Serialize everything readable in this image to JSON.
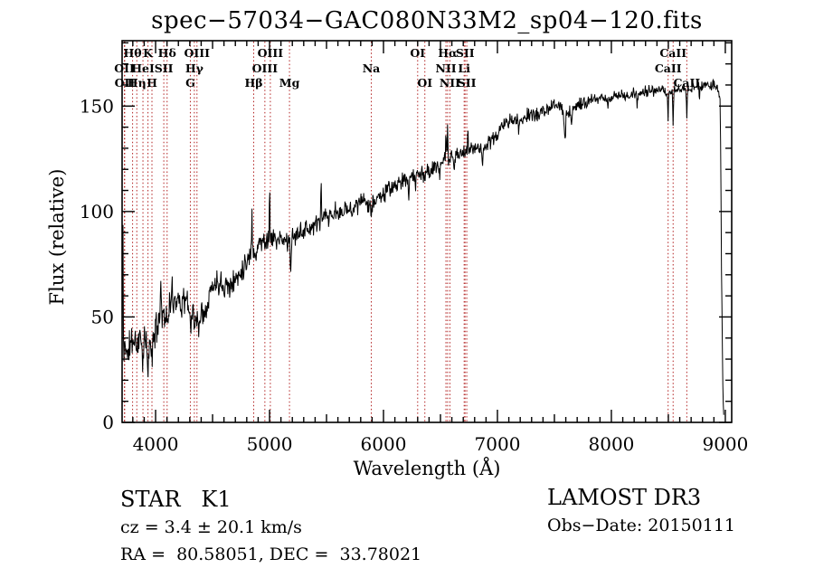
{
  "title": "spec−57034−GAC080N33M2_sp04−120.fits",
  "annotations": {
    "class_line": "STAR   K1",
    "cz_line": "cz = 3.4 ± 20.1 km/s",
    "radec_line": "RA =  80.58051, DEC =  33.78021",
    "survey": "LAMOST DR3",
    "obs_date": "Obs−Date: 20150111"
  },
  "colors": {
    "spectrum": "#000000",
    "axis": "#000000",
    "spectral_line_marker": "#b22222",
    "background": "#ffffff"
  },
  "chart_data": {
    "type": "line",
    "title": "spec−57034−GAC080N33M2_sp04−120.fits",
    "xlabel": "Wavelength (Å)",
    "ylabel": "Flux (relative)",
    "xlim": [
      3706,
      9056
    ],
    "ylim": [
      0,
      181
    ],
    "grid": false,
    "legend": "none",
    "x_major_ticks": [
      4000,
      5000,
      6000,
      7000,
      8000,
      9000
    ],
    "x_minor_step": 100,
    "x_mid_step": 500,
    "y_major_ticks": [
      0,
      50,
      100,
      150
    ],
    "y_minor_step": 10,
    "spectral_lines": [
      {
        "name": "Hθ",
        "wavelength": 3798,
        "row": 1
      },
      {
        "name": "K",
        "wavelength": 3933,
        "row": 1
      },
      {
        "name": "Hδ",
        "wavelength": 4101,
        "row": 1
      },
      {
        "name": "OIII",
        "wavelength": 4363,
        "row": 1
      },
      {
        "name": "OIII",
        "wavelength": 5007,
        "row": 1
      },
      {
        "name": "OI",
        "wavelength": 6300,
        "row": 1
      },
      {
        "name": "Hα",
        "wavelength": 6563,
        "row": 1
      },
      {
        "name": "SII",
        "wavelength": 6716,
        "row": 1
      },
      {
        "name": "CaII",
        "wavelength": 8542,
        "row": 1
      },
      {
        "name": "OII",
        "wavelength": 3726,
        "row": 2
      },
      {
        "name": "HeI",
        "wavelength": 3889,
        "row": 2
      },
      {
        "name": "SII",
        "wavelength": 4072,
        "row": 2
      },
      {
        "name": "Hγ",
        "wavelength": 4340,
        "row": 2
      },
      {
        "name": "OIII",
        "wavelength": 4959,
        "row": 2
      },
      {
        "name": "Na",
        "wavelength": 5893,
        "row": 2
      },
      {
        "name": "NII",
        "wavelength": 6548,
        "row": 2
      },
      {
        "name": "Li",
        "wavelength": 6708,
        "row": 2
      },
      {
        "name": "CaII",
        "wavelength": 8498,
        "row": 2
      },
      {
        "name": "OII",
        "wavelength": 3729,
        "row": 3
      },
      {
        "name": "Hη",
        "wavelength": 3835,
        "row": 3
      },
      {
        "name": "H",
        "wavelength": 3968,
        "row": 3
      },
      {
        "name": "G",
        "wavelength": 4305,
        "row": 3
      },
      {
        "name": "Hβ",
        "wavelength": 4861,
        "row": 3
      },
      {
        "name": "Mg",
        "wavelength": 5175,
        "row": 3
      },
      {
        "name": "OI",
        "wavelength": 6363,
        "row": 3
      },
      {
        "name": "NII",
        "wavelength": 6583,
        "row": 3
      },
      {
        "name": "SII",
        "wavelength": 6731,
        "row": 3
      },
      {
        "name": "CaII",
        "wavelength": 8662,
        "row": 3
      }
    ],
    "spectrum": {
      "seed": 11,
      "sample_step": 4,
      "continuum": [
        [
          3706,
          30
        ],
        [
          3715,
          42
        ],
        [
          3730,
          38
        ],
        [
          3760,
          36
        ],
        [
          3800,
          39
        ],
        [
          3845,
          40
        ],
        [
          3890,
          38
        ],
        [
          3935,
          37
        ],
        [
          3970,
          40
        ],
        [
          4005,
          44
        ],
        [
          4040,
          50
        ],
        [
          4070,
          54
        ],
        [
          4105,
          52
        ],
        [
          4140,
          57
        ],
        [
          4180,
          59
        ],
        [
          4220,
          58
        ],
        [
          4260,
          58
        ],
        [
          4300,
          54
        ],
        [
          4345,
          50
        ],
        [
          4390,
          51
        ],
        [
          4430,
          54
        ],
        [
          4470,
          61
        ],
        [
          4510,
          65
        ],
        [
          4550,
          67
        ],
        [
          4590,
          66
        ],
        [
          4640,
          65
        ],
        [
          4690,
          67
        ],
        [
          4740,
          71
        ],
        [
          4790,
          76
        ],
        [
          4840,
          80
        ],
        [
          4890,
          84
        ],
        [
          4940,
          86
        ],
        [
          4990,
          87
        ],
        [
          5040,
          87
        ],
        [
          5090,
          86
        ],
        [
          5140,
          86
        ],
        [
          5190,
          86
        ],
        [
          5240,
          89
        ],
        [
          5290,
          91
        ],
        [
          5340,
          92
        ],
        [
          5390,
          93
        ],
        [
          5440,
          95
        ],
        [
          5490,
          97
        ],
        [
          5540,
          97
        ],
        [
          5590,
          98
        ],
        [
          5640,
          100
        ],
        [
          5690,
          101
        ],
        [
          5740,
          102
        ],
        [
          5790,
          104
        ],
        [
          5840,
          105
        ],
        [
          5890,
          104
        ],
        [
          5940,
          106
        ],
        [
          5990,
          108
        ],
        [
          6040,
          110
        ],
        [
          6090,
          112
        ],
        [
          6140,
          113
        ],
        [
          6190,
          115
        ],
        [
          6240,
          116
        ],
        [
          6290,
          118
        ],
        [
          6340,
          118
        ],
        [
          6390,
          119
        ],
        [
          6440,
          120
        ],
        [
          6490,
          122
        ],
        [
          6540,
          124
        ],
        [
          6590,
          125
        ],
        [
          6640,
          126
        ],
        [
          6690,
          128
        ],
        [
          6740,
          129
        ],
        [
          6790,
          130
        ],
        [
          6840,
          131
        ],
        [
          6890,
          131
        ],
        [
          6940,
          133
        ],
        [
          6990,
          136
        ],
        [
          7040,
          140
        ],
        [
          7090,
          143
        ],
        [
          7140,
          143
        ],
        [
          7190,
          143
        ],
        [
          7240,
          145
        ],
        [
          7290,
          146
        ],
        [
          7340,
          146
        ],
        [
          7390,
          147
        ],
        [
          7440,
          148
        ],
        [
          7490,
          150
        ],
        [
          7540,
          150
        ],
        [
          7590,
          148
        ],
        [
          7640,
          147
        ],
        [
          7690,
          150
        ],
        [
          7740,
          151
        ],
        [
          7790,
          152
        ],
        [
          7840,
          153
        ],
        [
          7890,
          153
        ],
        [
          7940,
          154
        ],
        [
          7990,
          154
        ],
        [
          8040,
          155
        ],
        [
          8090,
          155
        ],
        [
          8140,
          155
        ],
        [
          8190,
          156
        ],
        [
          8240,
          156
        ],
        [
          8290,
          157
        ],
        [
          8340,
          157
        ],
        [
          8390,
          157
        ],
        [
          8440,
          157
        ],
        [
          8490,
          157
        ],
        [
          8540,
          157
        ],
        [
          8590,
          158
        ],
        [
          8640,
          158
        ],
        [
          8690,
          158
        ],
        [
          8740,
          159
        ],
        [
          8790,
          159
        ],
        [
          8840,
          160
        ],
        [
          8890,
          160
        ],
        [
          8930,
          159
        ],
        [
          8955,
          152
        ],
        [
          8962,
          110
        ],
        [
          8966,
          75
        ],
        [
          8970,
          55
        ],
        [
          8976,
          25
        ],
        [
          8982,
          8
        ],
        [
          8988,
          3
        ]
      ],
      "features": [
        [
          3708,
          -20,
          2
        ],
        [
          3712,
          62,
          3
        ],
        [
          3722,
          -12,
          3
        ],
        [
          3755,
          -9,
          4
        ],
        [
          3835,
          -7,
          4
        ],
        [
          3889,
          -9,
          4
        ],
        [
          3933,
          -19,
          4
        ],
        [
          3968,
          -13,
          4
        ],
        [
          4026,
          6,
          3
        ],
        [
          4046,
          19,
          3
        ],
        [
          4077,
          -8,
          3
        ],
        [
          4101,
          -9,
          4
        ],
        [
          4144,
          5,
          3
        ],
        [
          4227,
          -5,
          3
        ],
        [
          4305,
          -7,
          6
        ],
        [
          4340,
          -7,
          4
        ],
        [
          4383,
          -7,
          4
        ],
        [
          4455,
          -5,
          3
        ],
        [
          4668,
          -5,
          3
        ],
        [
          4845,
          24,
          2.5
        ],
        [
          4880,
          -8,
          3
        ],
        [
          5000,
          27,
          2.5
        ],
        [
          5185,
          -12,
          4
        ],
        [
          5270,
          6,
          3
        ],
        [
          5452,
          22,
          2.5
        ],
        [
          5577,
          7,
          3
        ],
        [
          5893,
          -7,
          5
        ],
        [
          6220,
          -8,
          3
        ],
        [
          6280,
          -7,
          3
        ],
        [
          6363,
          -5,
          3
        ],
        [
          6495,
          -5,
          3
        ],
        [
          6548,
          16,
          2.5
        ],
        [
          6563,
          20,
          2.5
        ],
        [
          6620,
          -6,
          3
        ],
        [
          6740,
          8,
          2.5
        ],
        [
          6867,
          -9,
          5
        ],
        [
          7186,
          -5,
          4
        ],
        [
          7594,
          -13,
          6
        ],
        [
          7650,
          -6,
          4
        ],
        [
          7970,
          -5,
          4
        ],
        [
          8227,
          -5,
          4
        ],
        [
          8498,
          -13,
          3
        ],
        [
          8542,
          -17,
          3
        ],
        [
          8662,
          -14,
          3
        ],
        [
          8773,
          -5,
          3
        ]
      ],
      "noise_amplitude": [
        [
          3706,
          5.5
        ],
        [
          4000,
          5
        ],
        [
          4300,
          4.6
        ],
        [
          4700,
          4
        ],
        [
          5000,
          3.4
        ],
        [
          5500,
          3
        ],
        [
          6000,
          2.8
        ],
        [
          6500,
          2.6
        ],
        [
          7000,
          2.3
        ],
        [
          7500,
          2.2
        ],
        [
          8000,
          1.9
        ],
        [
          8600,
          1.8
        ],
        [
          8945,
          1.8
        ],
        [
          8960,
          4
        ],
        [
          8990,
          1
        ]
      ]
    }
  }
}
